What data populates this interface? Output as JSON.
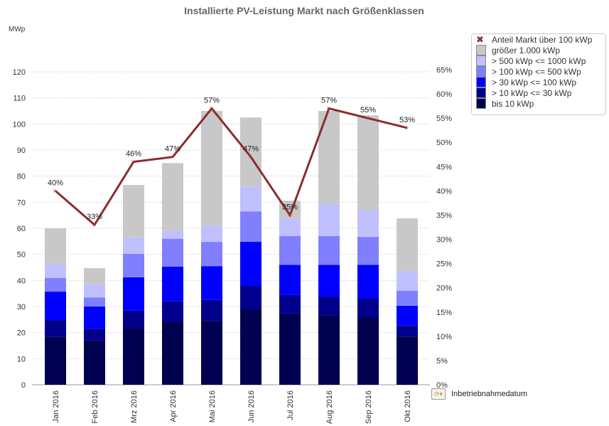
{
  "chart_data": {
    "type": "bar",
    "stacked": true,
    "title": "Installierte PV-Leistung Markt nach Größenklassen",
    "ylabel": "MWp",
    "ylim": [
      0,
      120
    ],
    "yticks": [
      0,
      10,
      20,
      30,
      40,
      50,
      60,
      70,
      80,
      90,
      100,
      110,
      120
    ],
    "y2lim": [
      0,
      65
    ],
    "y2ticks": [
      "0%",
      "5%",
      "10%",
      "15%",
      "20%",
      "25%",
      "30%",
      "35%",
      "40%",
      "45%",
      "50%",
      "55%",
      "60%",
      "65%"
    ],
    "grid": true,
    "legend_position": "top-right",
    "categories": [
      "Jan 2016",
      "Feb 2016",
      "Mrz 2016",
      "Apr 2016",
      "Mai 2016",
      "Jun 2016",
      "Jul 2016",
      "Aug 2016",
      "Sep 2016",
      "Okt 2016"
    ],
    "series": [
      {
        "name": "bis 10 kWp",
        "color": "#000050",
        "values": [
          18.3,
          17,
          21.8,
          24,
          24.5,
          28.9,
          27.3,
          26.7,
          25.9,
          18.5
        ]
      },
      {
        "name": "> 10 kWp <= 30 kWp",
        "color": "#00008C",
        "values": [
          6.5,
          4.5,
          6.6,
          8,
          8,
          9,
          7.1,
          7.1,
          7.1,
          4.1
        ]
      },
      {
        "name": "> 30 kWp <= 100 kWp",
        "color": "#0000FF",
        "values": [
          10.9,
          8.5,
          12.8,
          13.3,
          13,
          16.9,
          11.6,
          12.2,
          13,
          7.7
        ]
      },
      {
        "name": "> 100 kWp <= 500 kWp",
        "color": "#8080FF",
        "values": [
          5.3,
          3.5,
          9,
          10.7,
          9.3,
          11.7,
          11,
          11,
          10.7,
          5.7
        ]
      },
      {
        "name": "> 500 kWp <= 1000 kWp",
        "color": "#C0C0FF",
        "values": [
          5.4,
          5,
          6.3,
          3,
          6.2,
          9.5,
          6.8,
          12.5,
          10.1,
          7.6
        ]
      },
      {
        "name": "größer 1.000 kWp",
        "color": "#C8C8C8",
        "values": [
          13.6,
          6.2,
          20.1,
          26,
          44,
          26.5,
          6.8,
          35.5,
          36.5,
          20.2
        ]
      }
    ],
    "line": {
      "name": "Anteil Markt über 100 kWp",
      "color": "#8B2E2E",
      "values": [
        40,
        33,
        46,
        47,
        57,
        47,
        35,
        57,
        55,
        53
      ],
      "labels": [
        "40%",
        "33%",
        "46%",
        "47%",
        "57%",
        "47%",
        "35%",
        "57%",
        "55%",
        "53%"
      ]
    }
  },
  "dimension_label": "Inbetriebnahmedatum"
}
